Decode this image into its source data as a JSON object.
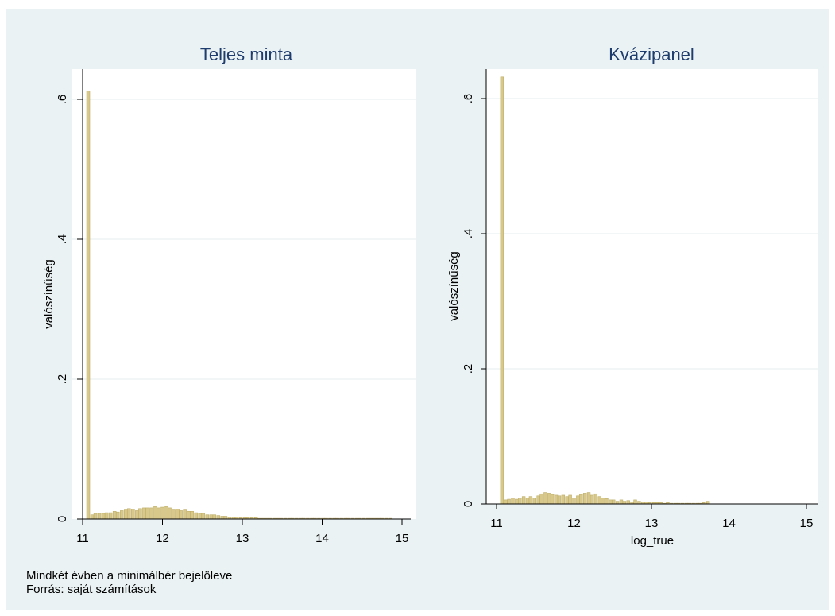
{
  "chart_data": [
    {
      "type": "bar",
      "title": "Teljes minta",
      "xlabel": "",
      "ylabel": "valószínűség",
      "xlim": [
        11,
        15
      ],
      "ylim": [
        0,
        0.6
      ],
      "yticks": [
        0,
        0.2,
        0.4,
        0.6
      ],
      "ytick_labels": [
        "0",
        ".2",
        ".4",
        ".6"
      ],
      "xticks": [
        11,
        12,
        13,
        14,
        15
      ],
      "xtick_labels": [
        "11",
        "12",
        "13",
        "14",
        "15"
      ],
      "grid": true,
      "bar_color": "#d8c98a",
      "bin_width": 0.0465,
      "x": [
        11.07,
        11.12,
        11.16,
        11.21,
        11.26,
        11.3,
        11.35,
        11.4,
        11.44,
        11.49,
        11.54,
        11.58,
        11.63,
        11.68,
        11.72,
        11.77,
        11.81,
        11.86,
        11.91,
        11.95,
        12.0,
        12.05,
        12.09,
        12.14,
        12.19,
        12.23,
        12.28,
        12.33,
        12.37,
        12.42,
        12.47,
        12.51,
        12.56,
        12.61,
        12.65,
        12.7,
        12.75,
        12.79,
        12.84,
        12.89,
        12.93,
        12.98,
        13.03,
        13.07,
        13.12,
        13.17,
        13.21,
        13.26,
        13.31,
        13.35,
        13.4,
        13.45,
        13.49,
        13.54,
        13.59,
        13.63,
        13.68,
        13.73,
        13.77,
        13.82,
        13.87,
        13.91,
        13.96,
        14.01,
        14.05,
        14.1,
        14.15,
        14.19,
        14.24,
        14.29,
        14.33,
        14.38,
        14.43,
        14.47,
        14.52,
        14.57,
        14.61,
        14.66,
        14.71,
        14.75,
        14.8,
        14.85
      ],
      "values": [
        0.612,
        0.006,
        0.008,
        0.008,
        0.008,
        0.009,
        0.009,
        0.011,
        0.01,
        0.012,
        0.013,
        0.015,
        0.014,
        0.012,
        0.015,
        0.016,
        0.016,
        0.016,
        0.018,
        0.016,
        0.017,
        0.018,
        0.016,
        0.013,
        0.014,
        0.012,
        0.013,
        0.011,
        0.011,
        0.009,
        0.008,
        0.008,
        0.006,
        0.006,
        0.006,
        0.005,
        0.004,
        0.004,
        0.003,
        0.003,
        0.003,
        0.002,
        0.002,
        0.002,
        0.002,
        0.002,
        0.001,
        0.001,
        0.001,
        0.001,
        0.001,
        0.001,
        0.001,
        0.001,
        0.001,
        0.001,
        0.001,
        0.001,
        0.001,
        0.001,
        0.001,
        0.001,
        0.001,
        0.001,
        0.001,
        0.001,
        0.001,
        0.001,
        0.001,
        0.001,
        0.001,
        0.001,
        0.001,
        0.001,
        0.001,
        0.001,
        0.001,
        0.001,
        0.001,
        0.001,
        0.001,
        0.001
      ]
    },
    {
      "type": "bar",
      "title": "Kvázipanel",
      "xlabel": "log_true",
      "ylabel": "valószínűség",
      "xlim": [
        11,
        15
      ],
      "ylim": [
        0,
        0.6
      ],
      "yticks": [
        0,
        0.2,
        0.4,
        0.6
      ],
      "ytick_labels": [
        "0",
        ".2",
        ".4",
        ".6"
      ],
      "xticks": [
        11,
        12,
        13,
        14,
        15
      ],
      "xtick_labels": [
        "11",
        "12",
        "13",
        "14",
        "15"
      ],
      "grid": true,
      "bar_color": "#d8c98a",
      "bin_width": 0.0465,
      "x": [
        11.07,
        11.12,
        11.16,
        11.21,
        11.26,
        11.3,
        11.35,
        11.4,
        11.44,
        11.49,
        11.54,
        11.58,
        11.63,
        11.68,
        11.72,
        11.77,
        11.81,
        11.86,
        11.91,
        11.95,
        12.0,
        12.05,
        12.09,
        12.14,
        12.19,
        12.23,
        12.28,
        12.33,
        12.37,
        12.42,
        12.47,
        12.51,
        12.56,
        12.61,
        12.65,
        12.7,
        12.75,
        12.79,
        12.84,
        12.89,
        12.93,
        12.98,
        13.03,
        13.07,
        13.12,
        13.17,
        13.21,
        13.26,
        13.31,
        13.35,
        13.4,
        13.45,
        13.49,
        13.54,
        13.59,
        13.63,
        13.68,
        13.73
      ],
      "values": [
        0.632,
        0.006,
        0.007,
        0.009,
        0.007,
        0.009,
        0.011,
        0.009,
        0.011,
        0.009,
        0.012,
        0.015,
        0.017,
        0.016,
        0.014,
        0.013,
        0.012,
        0.013,
        0.011,
        0.013,
        0.009,
        0.012,
        0.014,
        0.016,
        0.017,
        0.013,
        0.015,
        0.011,
        0.009,
        0.008,
        0.006,
        0.006,
        0.004,
        0.006,
        0.004,
        0.005,
        0.003,
        0.006,
        0.004,
        0.003,
        0.003,
        0.002,
        0.002,
        0.002,
        0.002,
        0.001,
        0.002,
        0.001,
        0.001,
        0.001,
        0.001,
        0.001,
        0.001,
        0.001,
        0.001,
        0.001,
        0.002,
        0.004
      ]
    }
  ],
  "notes": {
    "line1": "Mindkét évben a minimálbér bejelöleve",
    "line2": "Forrás: saját számítások"
  },
  "colors": {
    "outer_bg": "#eaf2f3",
    "plot_bg": "#ffffff",
    "grid": "#e4ecee",
    "bar_fill": "#d8c98a",
    "bar_stroke": "#bfae6a",
    "axis": "#000000",
    "title": "#1e3c6e"
  }
}
